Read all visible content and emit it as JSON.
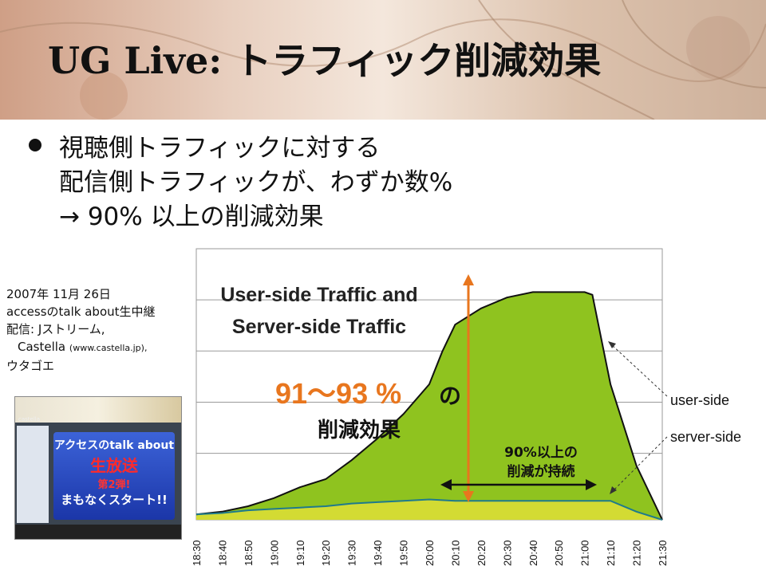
{
  "title": "UG Live: トラフィック削減効果",
  "bullets": [
    "視聴側トラフィックに対する",
    "配信側トラフィックが、わずか数%",
    "→ 90% 以上の削減効果"
  ],
  "note": {
    "line1": "2007年 11月 26日",
    "line2": "accessのtalk about生中継",
    "line3": "配信: Jストリーム,",
    "line4a": "Castella",
    "line4b": "(www.castella.jp),",
    "line5": "ウタゴエ"
  },
  "thumbnail": {
    "brand": "castella",
    "line1": "アクセスのtalk about",
    "line2": "生放送",
    "line3": "第2弾!",
    "line4": "まもなくスタート!!"
  },
  "colors": {
    "fill": "#8fc31f",
    "highlight": "#f0e63c",
    "arrow_orange": "#e8761e",
    "user_line": "#111111",
    "server_line": "#1f7a8c"
  },
  "chart_data": {
    "type": "area",
    "x_ticks": [
      "18:30",
      "18:40",
      "18:50",
      "19:00",
      "19:10",
      "19:20",
      "19:30",
      "19:40",
      "19:50",
      "20:00",
      "20:10",
      "20:20",
      "20:30",
      "20:40",
      "20:50",
      "21:00",
      "21:10",
      "21:20",
      "21:30"
    ],
    "ylim": [
      0,
      100
    ],
    "grid": true,
    "annotation_title": [
      "User-side Traffic and",
      "Server-side Traffic"
    ],
    "series": [
      {
        "name": "user-side",
        "x": [
          "18:30",
          "18:40",
          "18:50",
          "19:00",
          "19:10",
          "19:20",
          "19:30",
          "19:40",
          "19:50",
          "20:00",
          "20:05",
          "20:10",
          "20:20",
          "20:30",
          "20:40",
          "20:50",
          "21:00",
          "21:03",
          "21:10",
          "21:20",
          "21:30"
        ],
        "values": [
          2,
          3,
          5,
          8,
          12,
          15,
          22,
          30,
          39,
          50,
          62,
          72,
          78,
          82,
          84,
          84,
          84,
          83,
          50,
          20,
          0
        ]
      },
      {
        "name": "server-side",
        "x": [
          "18:30",
          "18:40",
          "18:50",
          "19:00",
          "19:10",
          "19:20",
          "19:30",
          "19:40",
          "19:50",
          "20:00",
          "20:10",
          "20:20",
          "20:30",
          "20:40",
          "20:50",
          "21:00",
          "21:10",
          "21:20",
          "21:30"
        ],
        "values": [
          2,
          2.5,
          3.5,
          4,
          4.5,
          5,
          6,
          6.5,
          7,
          7.5,
          7,
          7,
          7,
          7,
          7,
          7,
          7,
          3,
          0
        ]
      }
    ],
    "annotations": {
      "reduction_value": "91～93 %",
      "reduction_suffix": "の",
      "reduction_label": "削減効果",
      "sustained_line1": "90%以上の",
      "sustained_line2": "削減が持続",
      "user_label": "user-side",
      "server_label": "server-side"
    }
  }
}
